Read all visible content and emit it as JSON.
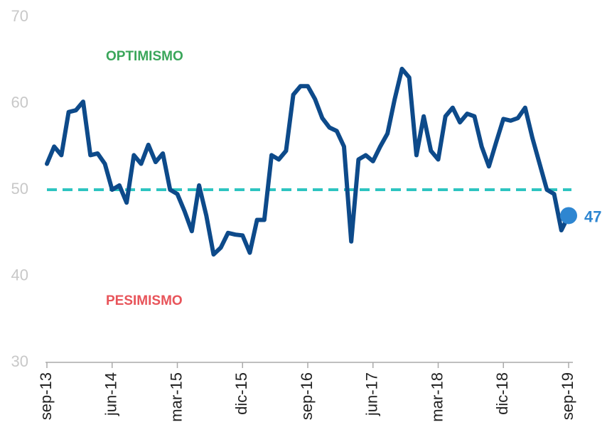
{
  "chart_data": {
    "type": "line",
    "categories": [
      "sep-13",
      null,
      null,
      null,
      null,
      null,
      null,
      null,
      null,
      "jun-14",
      null,
      null,
      null,
      null,
      null,
      null,
      null,
      null,
      "mar-15",
      null,
      null,
      null,
      null,
      null,
      null,
      null,
      null,
      "dic-15",
      null,
      null,
      null,
      null,
      null,
      null,
      null,
      null,
      "sep-16",
      null,
      null,
      null,
      null,
      null,
      null,
      null,
      null,
      "jun-17",
      null,
      null,
      null,
      null,
      null,
      null,
      null,
      null,
      "mar-18",
      null,
      null,
      null,
      null,
      null,
      null,
      null,
      null,
      "dic-18",
      null,
      null,
      null,
      null,
      null,
      null,
      null,
      null,
      "sep-19"
    ],
    "series": [
      {
        "color": "#0d4a8a",
        "marker_color": "#2e86d1",
        "values": [
          53,
          55,
          54,
          59,
          59.2,
          60.2,
          54,
          54.2,
          53,
          50,
          50.5,
          48.5,
          54,
          53,
          55.2,
          53.2,
          54.2,
          50,
          49.5,
          47.5,
          45.2,
          50.5,
          47,
          42.5,
          43.3,
          45,
          44.8,
          44.7,
          42.7,
          46.5,
          46.5,
          54,
          53.5,
          54.5,
          61,
          62,
          62,
          60.5,
          58.3,
          57.2,
          56.8,
          55,
          44,
          53.5,
          54,
          53.3,
          55,
          56.5,
          60.5,
          64,
          63,
          54,
          58.5,
          54.5,
          53.5,
          58.5,
          59.5,
          57.8,
          58.8,
          58.5,
          55,
          52.7,
          55.5,
          58.2,
          58,
          58.3,
          59.5,
          56,
          53,
          50,
          49.5,
          45.3,
          47
        ]
      }
    ],
    "ylim": [
      30,
      70
    ],
    "yticks": [
      30,
      40,
      50,
      60,
      70
    ],
    "reference_line": {
      "value": 50,
      "color": "#2ec4c0"
    },
    "annotations": [
      {
        "text": "OPTIMISMO",
        "color": "#3aa65a"
      },
      {
        "text": "PESIMISMO",
        "color": "#e8545a"
      }
    ]
  }
}
